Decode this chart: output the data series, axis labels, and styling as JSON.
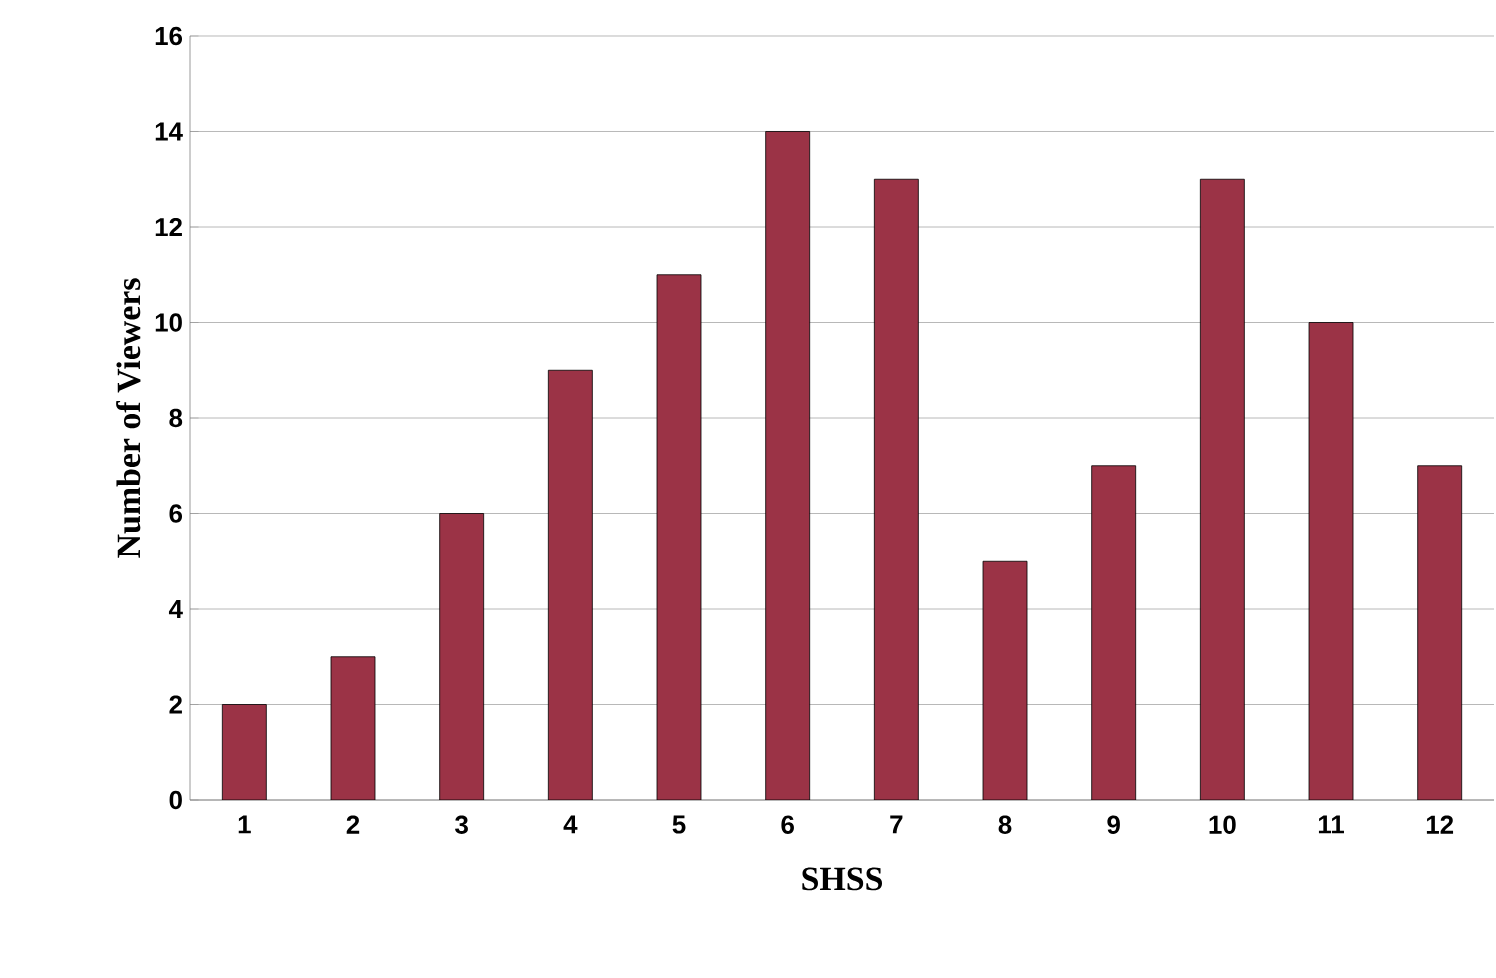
{
  "chart_data": {
    "type": "bar",
    "xlabel": "SHSS",
    "ylabel": "Number of Viewers",
    "categories": [
      "1",
      "2",
      "3",
      "4",
      "5",
      "6",
      "7",
      "8",
      "9",
      "10",
      "11",
      "12"
    ],
    "values": [
      2,
      3,
      6,
      9,
      11,
      14,
      13,
      5,
      7,
      13,
      10,
      7
    ],
    "color": "#9b3346",
    "ylim": [
      0,
      16
    ],
    "yticks": [
      0,
      2,
      4,
      6,
      8,
      10,
      12,
      14,
      16
    ],
    "grid": "y"
  }
}
